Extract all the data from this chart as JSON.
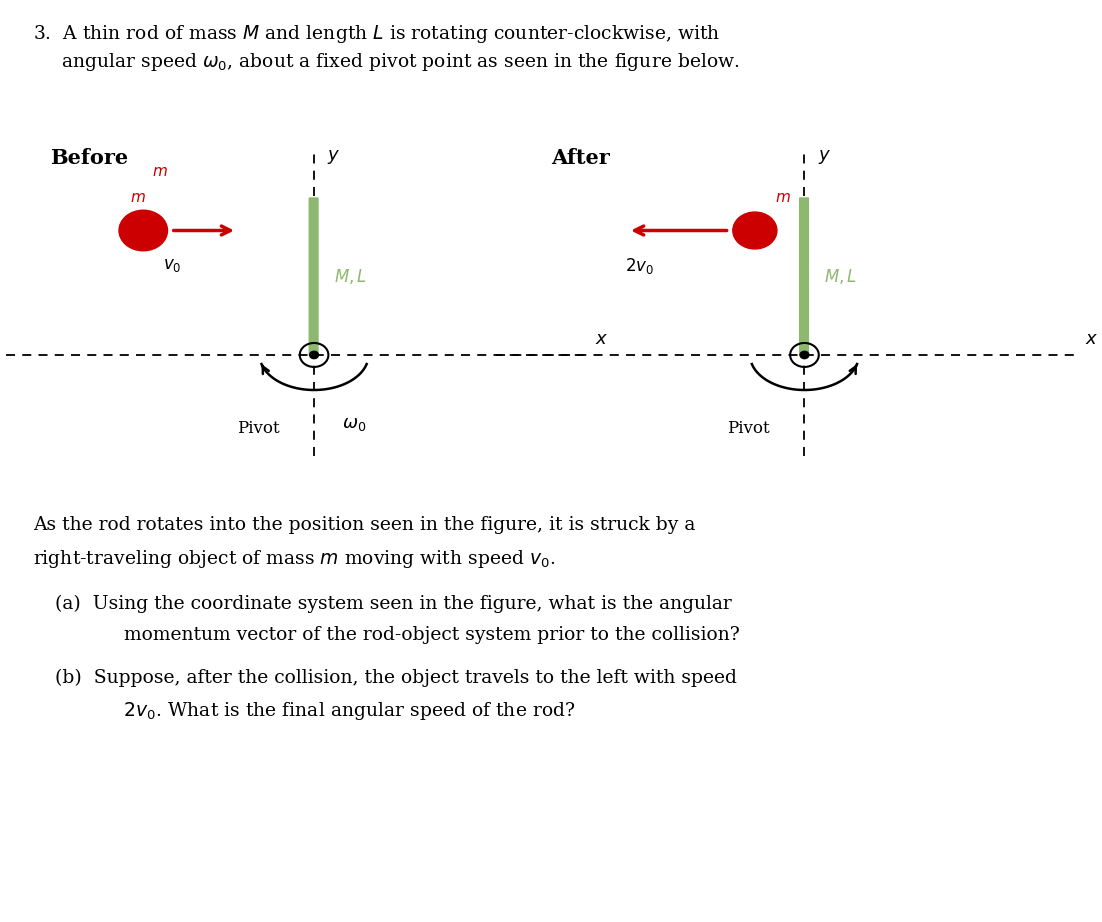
{
  "bg_color": "#ffffff",
  "text_color": "#000000",
  "red_color": "#cc0000",
  "green_rod_color": "#8db870",
  "fig_width": 11.02,
  "fig_height": 9.22,
  "dpi": 100,
  "problem_line1": "3.  A thin rod of mass $M$ and length $L$ is rotating counter-clockwise, with",
  "problem_line2": "angular speed $\\omega_0$, about a fixed pivot point as seen in the figure below.",
  "body_line1": "As the rod rotates into the position seen in the figure, it is struck by a",
  "body_line2": "right-traveling object of mass $m$ moving with speed $v_0$.",
  "qa_line1": "(a)  Using the coordinate system seen in the figure, what is the angular",
  "qa_line2": "      momentum vector of the rod-object system prior to the collision?",
  "qb_line1": "(b)  Suppose, after the collision, the object travels to the left with speed",
  "qb_line2": "      $2v_0$. What is the final angular speed of the rod?"
}
